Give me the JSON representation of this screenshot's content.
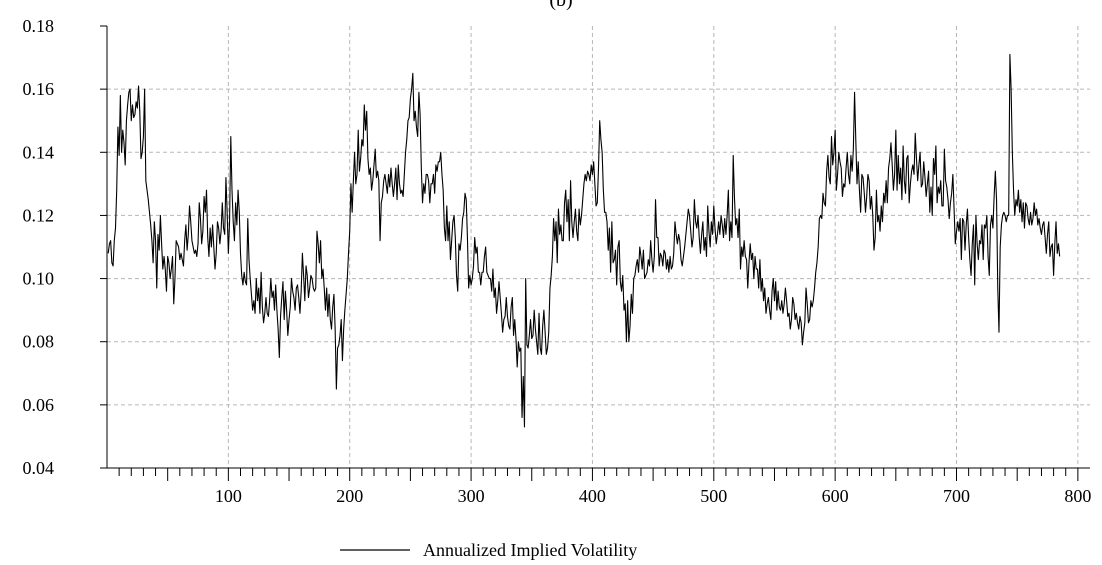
{
  "chart_data": {
    "type": "line",
    "title": "(b)",
    "xlabel": "",
    "ylabel": "",
    "xlim": [
      0,
      810
    ],
    "ylim": [
      0.04,
      0.18
    ],
    "grid": true,
    "legend_position": "bottom-center",
    "x_tick_labels": [
      "100",
      "200",
      "300",
      "400",
      "500",
      "600",
      "700",
      "800"
    ],
    "y_tick_labels": [
      "0.04",
      "0.06",
      "0.08",
      "0.10",
      "0.12",
      "0.14",
      "0.16",
      "0.18"
    ],
    "series": [
      {
        "name": "Annualized Implied Volatility",
        "color": "#000000",
        "x_start": 1,
        "x_step": 1,
        "values": [
          0.108,
          0.111,
          0.112,
          0.105,
          0.104,
          0.112,
          0.116,
          0.128,
          0.148,
          0.139,
          0.158,
          0.14,
          0.147,
          0.143,
          0.136,
          0.15,
          0.155,
          0.159,
          0.16,
          0.15,
          0.155,
          0.151,
          0.152,
          0.156,
          0.154,
          0.161,
          0.153,
          0.138,
          0.14,
          0.145,
          0.16,
          0.131,
          0.128,
          0.125,
          0.121,
          0.117,
          0.112,
          0.105,
          0.118,
          0.112,
          0.097,
          0.114,
          0.109,
          0.12,
          0.111,
          0.103,
          0.107,
          0.103,
          0.096,
          0.107,
          0.105,
          0.1,
          0.103,
          0.107,
          0.092,
          0.1,
          0.112,
          0.111,
          0.11,
          0.106,
          0.108,
          0.106,
          0.104,
          0.112,
          0.117,
          0.109,
          0.114,
          0.123,
          0.118,
          0.112,
          0.11,
          0.108,
          0.109,
          0.107,
          0.111,
          0.124,
          0.119,
          0.111,
          0.115,
          0.126,
          0.121,
          0.128,
          0.113,
          0.107,
          0.116,
          0.11,
          0.117,
          0.11,
          0.103,
          0.108,
          0.118,
          0.116,
          0.111,
          0.115,
          0.124,
          0.116,
          0.114,
          0.132,
          0.121,
          0.108,
          0.118,
          0.145,
          0.128,
          0.118,
          0.112,
          0.124,
          0.117,
          0.128,
          0.121,
          0.108,
          0.101,
          0.098,
          0.102,
          0.099,
          0.098,
          0.119,
          0.106,
          0.1,
          0.095,
          0.09,
          0.093,
          0.089,
          0.1,
          0.093,
          0.097,
          0.089,
          0.102,
          0.091,
          0.086,
          0.089,
          0.094,
          0.089,
          0.088,
          0.093,
          0.1,
          0.094,
          0.096,
          0.09,
          0.098,
          0.09,
          0.084,
          0.075,
          0.088,
          0.094,
          0.099,
          0.087,
          0.096,
          0.09,
          0.082,
          0.087,
          0.091,
          0.1,
          0.096,
          0.094,
          0.09,
          0.097,
          0.098,
          0.094,
          0.089,
          0.096,
          0.108,
          0.101,
          0.093,
          0.104,
          0.101,
          0.094,
          0.097,
          0.101,
          0.1,
          0.097,
          0.096,
          0.097,
          0.115,
          0.111,
          0.105,
          0.112,
          0.1,
          0.103,
          0.097,
          0.09,
          0.097,
          0.088,
          0.095,
          0.087,
          0.084,
          0.091,
          0.095,
          0.084,
          0.065,
          0.078,
          0.079,
          0.082,
          0.087,
          0.074,
          0.084,
          0.09,
          0.095,
          0.1,
          0.108,
          0.115,
          0.13,
          0.121,
          0.131,
          0.14,
          0.13,
          0.133,
          0.147,
          0.134,
          0.138,
          0.144,
          0.142,
          0.155,
          0.147,
          0.153,
          0.138,
          0.133,
          0.135,
          0.128,
          0.131,
          0.136,
          0.141,
          0.132,
          0.134,
          0.131,
          0.112,
          0.124,
          0.126,
          0.131,
          0.133,
          0.13,
          0.127,
          0.133,
          0.129,
          0.135,
          0.13,
          0.126,
          0.13,
          0.135,
          0.125,
          0.136,
          0.13,
          0.127,
          0.128,
          0.126,
          0.133,
          0.14,
          0.144,
          0.15,
          0.151,
          0.157,
          0.16,
          0.165,
          0.15,
          0.153,
          0.148,
          0.145,
          0.159,
          0.152,
          0.135,
          0.124,
          0.13,
          0.127,
          0.133,
          0.133,
          0.131,
          0.124,
          0.13,
          0.13,
          0.133,
          0.127,
          0.136,
          0.134,
          0.137,
          0.137,
          0.14,
          0.133,
          0.128,
          0.116,
          0.112,
          0.123,
          0.112,
          0.118,
          0.106,
          0.112,
          0.118,
          0.12,
          0.113,
          0.101,
          0.096,
          0.111,
          0.109,
          0.113,
          0.119,
          0.121,
          0.127,
          0.125,
          0.113,
          0.097,
          0.101,
          0.098,
          0.1,
          0.104,
          0.113,
          0.108,
          0.11,
          0.102,
          0.102,
          0.098,
          0.102,
          0.102,
          0.107,
          0.11,
          0.102,
          0.101,
          0.1,
          0.1,
          0.096,
          0.103,
          0.094,
          0.097,
          0.089,
          0.093,
          0.099,
          0.094,
          0.089,
          0.083,
          0.087,
          0.088,
          0.094,
          0.088,
          0.085,
          0.084,
          0.091,
          0.094,
          0.082,
          0.087,
          0.081,
          0.072,
          0.08,
          0.077,
          0.078,
          0.056,
          0.069,
          0.053,
          0.1,
          0.079,
          0.078,
          0.082,
          0.087,
          0.081,
          0.082,
          0.09,
          0.084,
          0.08,
          0.076,
          0.089,
          0.078,
          0.076,
          0.085,
          0.09,
          0.083,
          0.076,
          0.078,
          0.083,
          0.097,
          0.101,
          0.107,
          0.119,
          0.112,
          0.118,
          0.105,
          0.122,
          0.114,
          0.117,
          0.112,
          0.112,
          0.124,
          0.128,
          0.118,
          0.125,
          0.112,
          0.131,
          0.118,
          0.113,
          0.118,
          0.122,
          0.115,
          0.112,
          0.122,
          0.117,
          0.12,
          0.125,
          0.13,
          0.133,
          0.131,
          0.134,
          0.133,
          0.131,
          0.136,
          0.133,
          0.137,
          0.13,
          0.123,
          0.124,
          0.135,
          0.15,
          0.144,
          0.14,
          0.128,
          0.121,
          0.121,
          0.118,
          0.109,
          0.116,
          0.102,
          0.118,
          0.105,
          0.106,
          0.109,
          0.098,
          0.11,
          0.112,
          0.099,
          0.096,
          0.101,
          0.09,
          0.092,
          0.08,
          0.093,
          0.08,
          0.085,
          0.095,
          0.089,
          0.1,
          0.101,
          0.104,
          0.106,
          0.102,
          0.11,
          0.107,
          0.103,
          0.109,
          0.1,
          0.101,
          0.102,
          0.106,
          0.104,
          0.112,
          0.106,
          0.102,
          0.107,
          0.125,
          0.113,
          0.113,
          0.104,
          0.108,
          0.107,
          0.104,
          0.109,
          0.108,
          0.103,
          0.106,
          0.102,
          0.107,
          0.103,
          0.104,
          0.108,
          0.118,
          0.114,
          0.111,
          0.114,
          0.112,
          0.106,
          0.104,
          0.107,
          0.11,
          0.114,
          0.118,
          0.122,
          0.12,
          0.115,
          0.11,
          0.113,
          0.125,
          0.118,
          0.116,
          0.12,
          0.113,
          0.108,
          0.114,
          0.118,
          0.109,
          0.113,
          0.107,
          0.123,
          0.115,
          0.11,
          0.118,
          0.114,
          0.123,
          0.116,
          0.111,
          0.114,
          0.118,
          0.114,
          0.12,
          0.117,
          0.113,
          0.119,
          0.114,
          0.12,
          0.128,
          0.112,
          0.118,
          0.113,
          0.139,
          0.126,
          0.117,
          0.119,
          0.113,
          0.122,
          0.103,
          0.11,
          0.107,
          0.112,
          0.107,
          0.106,
          0.097,
          0.105,
          0.111,
          0.106,
          0.108,
          0.1,
          0.107,
          0.103,
          0.103,
          0.097,
          0.106,
          0.096,
          0.1,
          0.093,
          0.097,
          0.089,
          0.092,
          0.094,
          0.09,
          0.087,
          0.096,
          0.1,
          0.093,
          0.099,
          0.09,
          0.096,
          0.091,
          0.09,
          0.093,
          0.089,
          0.092,
          0.097,
          0.093,
          0.088,
          0.089,
          0.084,
          0.087,
          0.094,
          0.092,
          0.087,
          0.089,
          0.086,
          0.084,
          0.088,
          0.086,
          0.079,
          0.083,
          0.086,
          0.097,
          0.092,
          0.086,
          0.087,
          0.093,
          0.091,
          0.093,
          0.097,
          0.102,
          0.105,
          0.11,
          0.119,
          0.12,
          0.119,
          0.127,
          0.124,
          0.123,
          0.134,
          0.139,
          0.132,
          0.13,
          0.145,
          0.136,
          0.14,
          0.147,
          0.128,
          0.133,
          0.14,
          0.137,
          0.135,
          0.126,
          0.13,
          0.129,
          0.135,
          0.14,
          0.133,
          0.13,
          0.139,
          0.134,
          0.141,
          0.159,
          0.144,
          0.13,
          0.137,
          0.128,
          0.121,
          0.133,
          0.132,
          0.127,
          0.121,
          0.126,
          0.133,
          0.131,
          0.122,
          0.126,
          0.12,
          0.109,
          0.113,
          0.128,
          0.118,
          0.12,
          0.115,
          0.123,
          0.118,
          0.127,
          0.124,
          0.131,
          0.124,
          0.135,
          0.138,
          0.143,
          0.136,
          0.128,
          0.133,
          0.147,
          0.128,
          0.139,
          0.13,
          0.135,
          0.125,
          0.142,
          0.131,
          0.127,
          0.138,
          0.139,
          0.124,
          0.13,
          0.134,
          0.136,
          0.133,
          0.146,
          0.138,
          0.131,
          0.136,
          0.14,
          0.129,
          0.13,
          0.137,
          0.132,
          0.126,
          0.13,
          0.134,
          0.121,
          0.129,
          0.12,
          0.138,
          0.133,
          0.142,
          0.124,
          0.129,
          0.127,
          0.131,
          0.123,
          0.123,
          0.141,
          0.131,
          0.129,
          0.125,
          0.119,
          0.124,
          0.127,
          0.133,
          0.122,
          0.111,
          0.115,
          0.118,
          0.115,
          0.119,
          0.106,
          0.119,
          0.118,
          0.109,
          0.117,
          0.122,
          0.113,
          0.106,
          0.101,
          0.111,
          0.117,
          0.098,
          0.12,
          0.111,
          0.106,
          0.112,
          0.111,
          0.117,
          0.106,
          0.117,
          0.116,
          0.12,
          0.107,
          0.101,
          0.117,
          0.12,
          0.116,
          0.126,
          0.134,
          0.125,
          0.097,
          0.083,
          0.11,
          0.117,
          0.12,
          0.121,
          0.12,
          0.118,
          0.12,
          0.12,
          0.171,
          0.16,
          0.14,
          0.128,
          0.12,
          0.125,
          0.123,
          0.128,
          0.121,
          0.125,
          0.118,
          0.124,
          0.116,
          0.124,
          0.123,
          0.119,
          0.117,
          0.121,
          0.117,
          0.119,
          0.124,
          0.12,
          0.122,
          0.117,
          0.119,
          0.116,
          0.114,
          0.117,
          0.118,
          0.113,
          0.108,
          0.114,
          0.118,
          0.107,
          0.11,
          0.111,
          0.101,
          0.111,
          0.118,
          0.108,
          0.111,
          0.107
        ]
      }
    ]
  }
}
